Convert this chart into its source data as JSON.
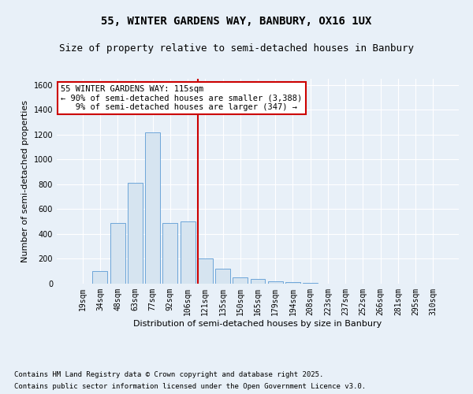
{
  "title": "55, WINTER GARDENS WAY, BANBURY, OX16 1UX",
  "subtitle": "Size of property relative to semi-detached houses in Banbury",
  "xlabel": "Distribution of semi-detached houses by size in Banbury",
  "ylabel": "Number of semi-detached properties",
  "categories": [
    "19sqm",
    "34sqm",
    "48sqm",
    "63sqm",
    "77sqm",
    "92sqm",
    "106sqm",
    "121sqm",
    "135sqm",
    "150sqm",
    "165sqm",
    "179sqm",
    "194sqm",
    "208sqm",
    "223sqm",
    "237sqm",
    "252sqm",
    "266sqm",
    "281sqm",
    "295sqm",
    "310sqm"
  ],
  "values": [
    2,
    100,
    490,
    810,
    1220,
    490,
    500,
    200,
    120,
    50,
    40,
    20,
    10,
    5,
    0,
    0,
    0,
    0,
    0,
    0,
    0
  ],
  "bar_color": "#d6e4f0",
  "bar_edge_color": "#5b9bd5",
  "property_line_x": 7.0,
  "property_line_color": "#cc0000",
  "annotation_text": "55 WINTER GARDENS WAY: 115sqm\n← 90% of semi-detached houses are smaller (3,388)\n   9% of semi-detached houses are larger (347) →",
  "annotation_edge_color": "#cc0000",
  "ylim": [
    0,
    1650
  ],
  "yticks": [
    0,
    200,
    400,
    600,
    800,
    1000,
    1200,
    1400,
    1600
  ],
  "bg_color": "#e8f0f8",
  "plot_bg_color": "#e8f0f8",
  "grid_color": "#ffffff",
  "footer_line1": "Contains HM Land Registry data © Crown copyright and database right 2025.",
  "footer_line2": "Contains public sector information licensed under the Open Government Licence v3.0.",
  "title_fontsize": 10,
  "subtitle_fontsize": 9,
  "axis_label_fontsize": 8,
  "tick_fontsize": 7,
  "annotation_fontsize": 7.5,
  "footer_fontsize": 6.5
}
